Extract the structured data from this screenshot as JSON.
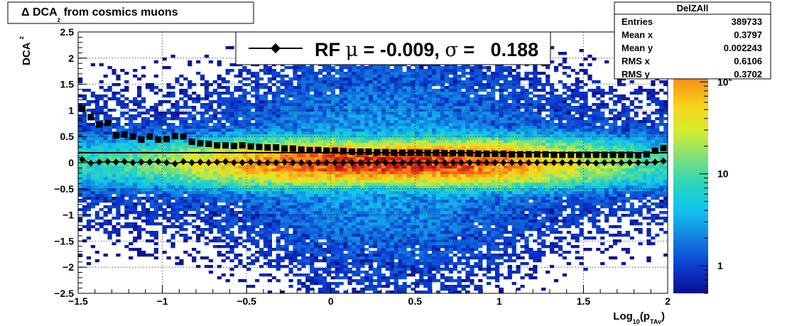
{
  "chart_data": {
    "type": "heatmap",
    "title": "Δ DCA_z from cosmics muons",
    "title_parts": {
      "symbol": "Δ",
      "main": "DCA",
      "sub": "z",
      "rest": "from cosmics muons"
    },
    "xlabel": {
      "main": "Log",
      "sub1": "10",
      "mid": "(p",
      "sub2": "TAv",
      "end": ")"
    },
    "ylabel": {
      "main": "DCA",
      "sub": "z"
    },
    "xlim": [
      -1.5,
      2.0
    ],
    "ylim": [
      -2.5,
      2.5
    ],
    "x_ticks": [
      {
        "v": -1.5,
        "t": "−1.5"
      },
      {
        "v": -1.0,
        "t": "−1"
      },
      {
        "v": -0.5,
        "t": "−0.5"
      },
      {
        "v": 0,
        "t": "0"
      },
      {
        "v": 0.5,
        "t": "0.5"
      },
      {
        "v": 1.0,
        "t": "1"
      },
      {
        "v": 1.5,
        "t": "1.5"
      },
      {
        "v": 2.0,
        "t": "2"
      }
    ],
    "y_ticks": [
      {
        "v": 2.5,
        "t": "2.5"
      },
      {
        "v": 2.0,
        "t": "2"
      },
      {
        "v": 1.5,
        "t": "1.5"
      },
      {
        "v": 1.0,
        "t": "1"
      },
      {
        "v": 0.5,
        "t": "0.5"
      },
      {
        "v": 0,
        "t": "0"
      },
      {
        "v": -0.5,
        "t": "−0.5"
      },
      {
        "v": -1.0,
        "t": "−1"
      },
      {
        "v": -1.5,
        "t": "−1.5"
      },
      {
        "v": -2.0,
        "t": "−2"
      },
      {
        "v": -2.5,
        "t": "−2.5"
      }
    ],
    "grid": true,
    "z_scale": "log",
    "z_ticks": [
      {
        "v": 1,
        "t": "1"
      },
      {
        "v": 10,
        "t": "10"
      },
      {
        "v": 100,
        "t": "10",
        "sup": "2"
      }
    ],
    "zlim": [
      0.5,
      350
    ],
    "stats_box": {
      "name": "DelZAll",
      "rows": [
        {
          "label": "Entries",
          "value": "389733"
        },
        {
          "label": "Mean x",
          "value": "0.3797"
        },
        {
          "label": "Mean y",
          "value": "0.002243"
        },
        {
          "label": "RMS x",
          "value": "0.6106"
        },
        {
          "label": "RMS y",
          "value": "0.3702"
        }
      ]
    },
    "legend": {
      "placement": "top",
      "parts": {
        "a": "RF ",
        "mu": "μ",
        "b": " = -0.009, ",
        "sigma": "σ",
        "c": " =   0.188"
      },
      "text": "RF μ = -0.009, σ =   0.188"
    },
    "series": [
      {
        "marker": "square",
        "x": [
          -1.475,
          -1.425,
          -1.375,
          -1.325,
          -1.275,
          -1.225,
          -1.175,
          -1.125,
          -1.075,
          -1.025,
          -0.975,
          -0.925,
          -0.875,
          -0.825,
          -0.775,
          -0.725,
          -0.675,
          -0.625,
          -0.575,
          -0.525,
          -0.475,
          -0.425,
          -0.375,
          -0.325,
          -0.275,
          -0.225,
          -0.175,
          -0.125,
          -0.075,
          -0.025,
          0.025,
          0.075,
          0.125,
          0.175,
          0.225,
          0.275,
          0.325,
          0.375,
          0.425,
          0.475,
          0.525,
          0.575,
          0.625,
          0.675,
          0.725,
          0.775,
          0.825,
          0.875,
          0.925,
          0.975,
          1.025,
          1.075,
          1.125,
          1.175,
          1.225,
          1.275,
          1.325,
          1.375,
          1.425,
          1.475,
          1.525,
          1.575,
          1.625,
          1.675,
          1.725,
          1.775,
          1.825,
          1.875,
          1.925,
          1.975
        ],
        "y": [
          1.03,
          0.87,
          0.73,
          0.76,
          0.52,
          0.54,
          0.5,
          0.44,
          0.5,
          0.44,
          0.45,
          0.51,
          0.5,
          0.4,
          0.37,
          0.36,
          0.33,
          0.33,
          0.32,
          0.33,
          0.31,
          0.3,
          0.29,
          0.29,
          0.27,
          0.27,
          0.25,
          0.24,
          0.24,
          0.23,
          0.23,
          0.22,
          0.21,
          0.21,
          0.21,
          0.2,
          0.2,
          0.19,
          0.19,
          0.19,
          0.19,
          0.18,
          0.19,
          0.18,
          0.18,
          0.18,
          0.18,
          0.17,
          0.17,
          0.17,
          0.17,
          0.16,
          0.16,
          0.16,
          0.16,
          0.16,
          0.15,
          0.15,
          0.15,
          0.15,
          0.15,
          0.15,
          0.15,
          0.15,
          0.15,
          0.15,
          0.14,
          0.16,
          0.23,
          0.28
        ]
      },
      {
        "marker": "diamond",
        "x": [
          -1.475,
          -1.425,
          -1.375,
          -1.325,
          -1.275,
          -1.225,
          -1.175,
          -1.125,
          -1.075,
          -1.025,
          -0.975,
          -0.925,
          -0.875,
          -0.825,
          -0.775,
          -0.725,
          -0.675,
          -0.625,
          -0.575,
          -0.525,
          -0.475,
          -0.425,
          -0.375,
          -0.325,
          -0.275,
          -0.225,
          -0.175,
          -0.125,
          -0.075,
          -0.025,
          0.025,
          0.075,
          0.125,
          0.175,
          0.225,
          0.275,
          0.325,
          0.375,
          0.425,
          0.475,
          0.525,
          0.575,
          0.625,
          0.675,
          0.725,
          0.775,
          0.825,
          0.875,
          0.925,
          0.975,
          1.025,
          1.075,
          1.125,
          1.175,
          1.225,
          1.275,
          1.325,
          1.375,
          1.425,
          1.475,
          1.525,
          1.575,
          1.625,
          1.675,
          1.725,
          1.775,
          1.825,
          1.875,
          1.925,
          1.975
        ],
        "y": [
          0.06,
          -0.01,
          0.01,
          0.02,
          0.01,
          0.02,
          0.0,
          0.01,
          0.01,
          0.02,
          0.0,
          -0.02,
          0.02,
          0.0,
          0.01,
          0.0,
          0.01,
          0.02,
          0.0,
          0.0,
          0.01,
          0.0,
          0.0,
          0.0,
          0.01,
          0.0,
          0.0,
          -0.01,
          0.0,
          0.0,
          0.0,
          0.0,
          0.0,
          0.0,
          -0.01,
          0.0,
          0.0,
          0.0,
          0.0,
          0.0,
          0.0,
          0.0,
          0.0,
          0.0,
          0.0,
          0.0,
          0.0,
          0.0,
          0.0,
          0.0,
          0.0,
          0.0,
          0.0,
          0.0,
          0.0,
          0.0,
          0.0,
          0.0,
          0.0,
          0.0,
          0.0,
          -0.01,
          0.0,
          0.0,
          0.0,
          0.0,
          0.0,
          0.0,
          0.01,
          0.03
        ]
      }
    ],
    "fit_line": {
      "x": [
        -1.5,
        2.0
      ],
      "y": [
        0.19,
        0.19
      ]
    }
  }
}
